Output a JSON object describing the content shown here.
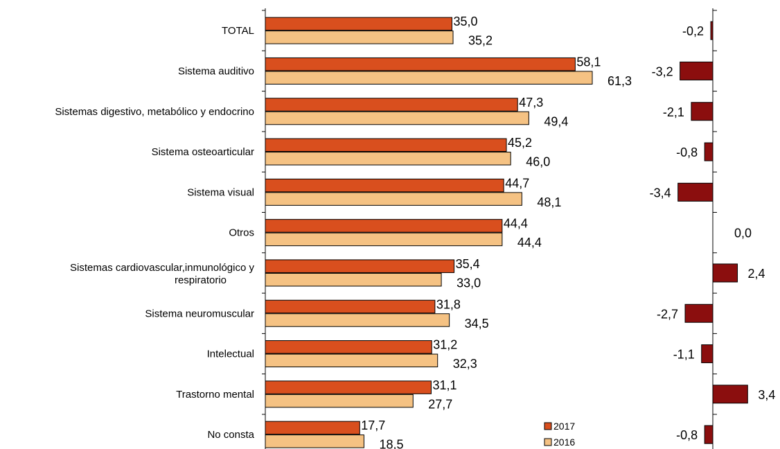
{
  "chart_data": [
    {
      "type": "bar",
      "orientation": "horizontal",
      "categories": [
        "TOTAL",
        "Sistema auditivo",
        "Sistemas digestivo, metabólico y endocrino",
        "Sistema osteoarticular",
        "Sistema visual",
        "Otros",
        "Sistemas cardiovascular,inmunológico y respiratorio",
        "Sistema neuromuscular",
        "Intelectual",
        "Trastorno mental",
        "No consta"
      ],
      "series": [
        {
          "name": "2017",
          "color": "#D94F1E",
          "values": [
            35.0,
            58.1,
            47.3,
            45.2,
            44.7,
            44.4,
            35.4,
            31.8,
            31.2,
            31.1,
            17.7
          ],
          "labels": [
            "35,0",
            "58,1",
            "47,3",
            "45,2",
            "44,7",
            "44,4",
            "35,4",
            "31,8",
            "31,2",
            "31,1",
            "17,7"
          ]
        },
        {
          "name": "2016",
          "color": "#F5C283",
          "values": [
            35.2,
            61.3,
            49.4,
            46.0,
            48.1,
            44.4,
            33.0,
            34.5,
            32.3,
            27.7,
            18.5
          ],
          "labels": [
            "35,2",
            "61,3",
            "49,4",
            "46,0",
            "48,1",
            "44,4",
            "33,0",
            "34,5",
            "32,3",
            "27,7",
            "18,5"
          ]
        }
      ],
      "xlim": [
        0,
        65
      ],
      "grid": false,
      "legend": "bottom-right",
      "legend_entries": [
        "2017",
        "2016"
      ]
    },
    {
      "type": "bar",
      "orientation": "horizontal",
      "categories": [
        "TOTAL",
        "Sistema auditivo",
        "Sistemas digestivo, metabólico y endocrino",
        "Sistema osteoarticular",
        "Sistema visual",
        "Otros",
        "Sistemas cardiovascular,inmunológico y respiratorio",
        "Sistema neuromuscular",
        "Intelectual",
        "Trastorno mental",
        "No consta"
      ],
      "series": [
        {
          "color": "#8B0E0E",
          "values": [
            -0.2,
            -3.2,
            -2.1,
            -0.8,
            -3.4,
            0.0,
            2.4,
            -2.7,
            -1.1,
            3.4,
            -0.8
          ],
          "labels": [
            "-0,2",
            "-3,2",
            "-2,1",
            "-0,8",
            "-3,4",
            "0,0",
            "2,4",
            "-2,7",
            "-1,1",
            "3,4",
            "-0,8"
          ]
        }
      ],
      "xlim": [
        -4,
        4
      ],
      "grid": false
    }
  ]
}
